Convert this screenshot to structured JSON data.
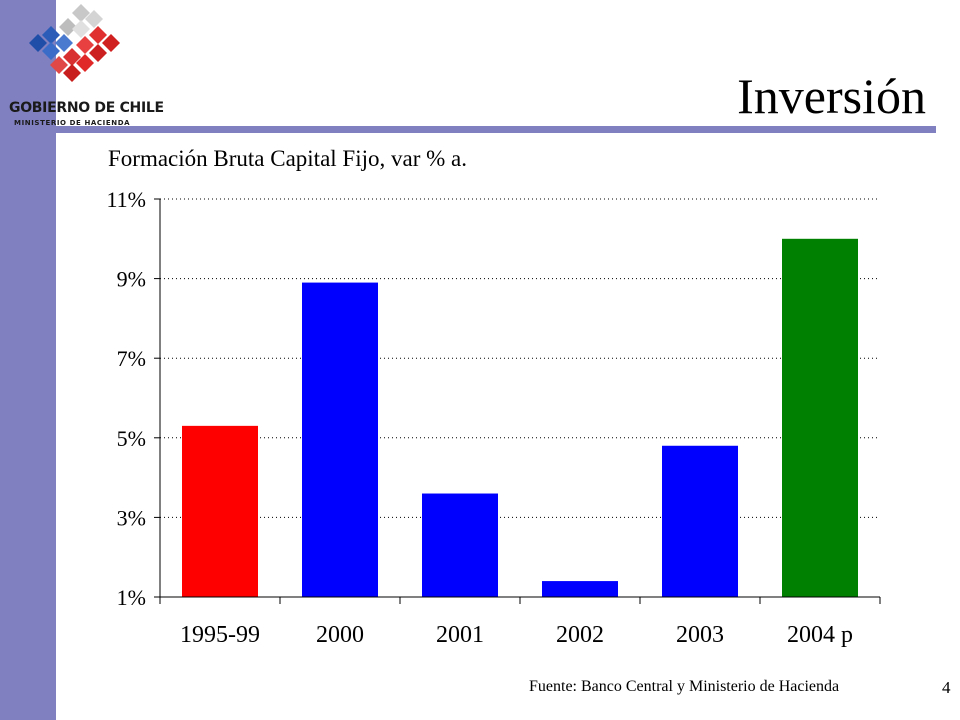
{
  "logo": {
    "line1": "GOBIERNO DE CHILE",
    "line2": "MINISTERIO DE HACIENDA"
  },
  "slide": {
    "title": "Inversión",
    "source": "Fuente: Banco Central y Ministerio de Hacienda",
    "page_number": "4"
  },
  "colors": {
    "sidebar": "#8080c0",
    "red": "#ff0000",
    "blue": "#0000ff",
    "green": "#008000"
  },
  "chart_data": {
    "type": "bar",
    "title": "Formación Bruta Capital Fijo, var % a.",
    "categories": [
      "1995-99",
      "2000",
      "2001",
      "2002",
      "2003",
      "2004 p"
    ],
    "values": [
      5.3,
      8.9,
      3.6,
      1.4,
      4.8,
      10.0
    ],
    "bar_colors": [
      "#ff0000",
      "#0000ff",
      "#0000ff",
      "#0000ff",
      "#0000ff",
      "#008000"
    ],
    "ylim": [
      1,
      11
    ],
    "yticks": [
      1,
      3,
      5,
      7,
      9,
      11
    ],
    "ytick_labels": [
      "1%",
      "3%",
      "5%",
      "7%",
      "9%",
      "11%"
    ],
    "grid": true,
    "xlabel": "",
    "ylabel": ""
  }
}
